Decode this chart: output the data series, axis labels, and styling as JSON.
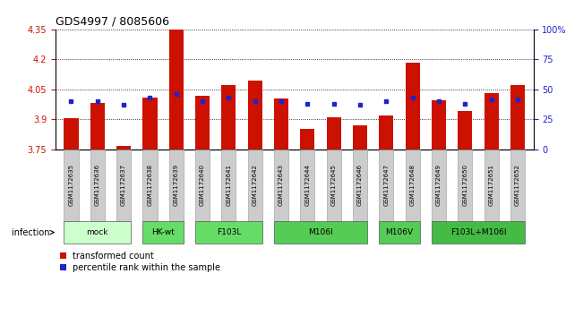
{
  "title": "GDS4997 / 8085606",
  "samples": [
    "GSM1172635",
    "GSM1172636",
    "GSM1172637",
    "GSM1172638",
    "GSM1172639",
    "GSM1172640",
    "GSM1172641",
    "GSM1172642",
    "GSM1172643",
    "GSM1172644",
    "GSM1172645",
    "GSM1172646",
    "GSM1172647",
    "GSM1172648",
    "GSM1172649",
    "GSM1172650",
    "GSM1172651",
    "GSM1172652"
  ],
  "transformed_counts": [
    3.905,
    3.982,
    3.77,
    4.008,
    4.35,
    4.02,
    4.073,
    4.093,
    4.005,
    3.853,
    3.912,
    3.872,
    3.918,
    4.185,
    3.996,
    3.942,
    4.03,
    4.07
  ],
  "percentile_ranks": [
    40,
    40,
    37,
    43,
    46,
    40,
    43,
    40,
    40,
    38,
    38,
    37,
    40,
    43,
    40,
    38,
    42,
    42
  ],
  "groups": [
    {
      "label": "mock",
      "start": 0,
      "end": 2,
      "color": "#ccffcc"
    },
    {
      "label": "HK-wt",
      "start": 3,
      "end": 4,
      "color": "#66dd66"
    },
    {
      "label": "F103L",
      "start": 5,
      "end": 7,
      "color": "#66dd66"
    },
    {
      "label": "M106I",
      "start": 8,
      "end": 11,
      "color": "#55cc55"
    },
    {
      "label": "M106V",
      "start": 12,
      "end": 13,
      "color": "#55cc55"
    },
    {
      "label": "F103L+M106I",
      "start": 14,
      "end": 17,
      "color": "#44bb44"
    }
  ],
  "ylim_left": [
    3.75,
    4.35
  ],
  "ylim_right": [
    0,
    100
  ],
  "yticks_left": [
    3.75,
    3.9,
    4.05,
    4.2,
    4.35
  ],
  "yticks_left_labels": [
    "3.75",
    "3.9",
    "4.05",
    "4.2",
    "4.35"
  ],
  "yticks_right": [
    0,
    25,
    50,
    75,
    100
  ],
  "yticks_right_labels": [
    "0",
    "25",
    "50",
    "75",
    "100%"
  ],
  "bar_color": "#cc1100",
  "dot_color": "#2222cc",
  "bar_width": 0.55,
  "bar_baseline": 3.75,
  "legend_label1": "transformed count",
  "legend_label2": "percentile rank within the sample",
  "infection_label": "infection",
  "sample_label_bg": "#cccccc",
  "sample_label_border": "#999999"
}
